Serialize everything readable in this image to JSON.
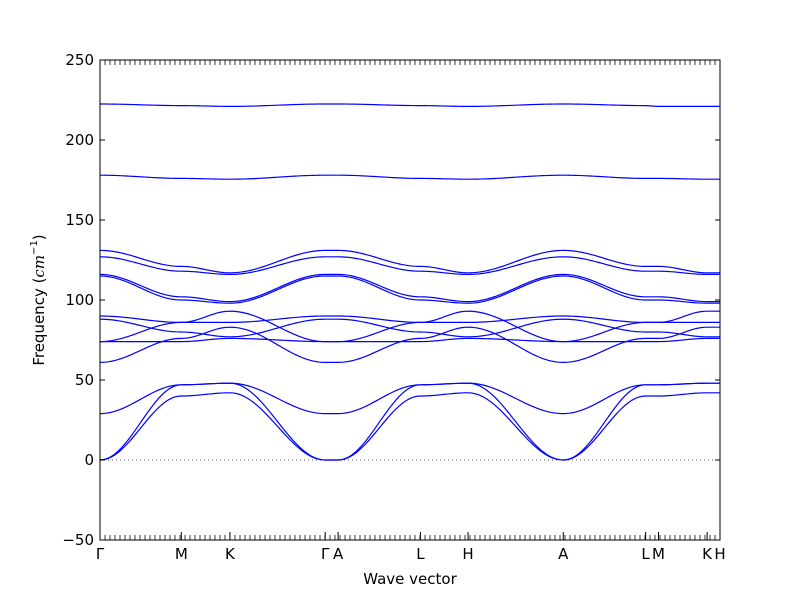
{
  "chart_data": {
    "type": "line",
    "xlabel": "Wave vector",
    "ylabel_text": "Frequency (",
    "ylabel_unit": "cm",
    "ylabel_exp": "−1",
    "ylabel_close": ")",
    "ylim": [
      -50,
      250
    ],
    "yticks": [
      -50,
      0,
      50,
      100,
      150,
      200,
      250
    ],
    "ytick_labels": [
      "−50",
      "0",
      "50",
      "100",
      "150",
      "200",
      "250"
    ],
    "xlim": [
      0,
      6.25
    ],
    "high_symmetry_points": [
      {
        "label": "Γ",
        "x": 0
      },
      {
        "label": "M",
        "x": 0.82
      },
      {
        "label": "K",
        "x": 1.31
      },
      {
        "label": "Γ",
        "x": 2.27
      },
      {
        "label": "A",
        "x": 2.4
      },
      {
        "label": "L",
        "x": 3.23
      },
      {
        "label": "H",
        "x": 3.71
      },
      {
        "label": "A",
        "x": 4.67
      },
      {
        "label": "L",
        "x": 5.5
      },
      {
        "label": "M",
        "x": 5.63
      },
      {
        "label": "K",
        "x": 6.12
      },
      {
        "label": "H",
        "x": 6.25
      }
    ],
    "zero_line": 0,
    "series_color": "#0000ff",
    "series": [
      {
        "x": [
          0,
          0.82,
          1.31,
          2.27,
          2.4,
          3.23,
          3.71,
          4.67,
          5.5,
          5.63,
          6.12,
          6.25
        ],
        "y": [
          0,
          40,
          42,
          0,
          0,
          40,
          42,
          0,
          40,
          40,
          42,
          42
        ]
      },
      {
        "x": [
          0,
          0.82,
          1.31,
          2.27,
          2.4,
          3.23,
          3.71,
          4.67,
          5.5,
          5.63,
          6.12,
          6.25
        ],
        "y": [
          0,
          47,
          48,
          0,
          0,
          47,
          48,
          0,
          47,
          47,
          48,
          48
        ]
      },
      {
        "x": [
          0,
          0.82,
          1.31,
          2.27,
          2.4,
          3.23,
          3.71,
          4.67,
          5.5,
          5.63,
          6.12,
          6.25
        ],
        "y": [
          29,
          47,
          48,
          29,
          29,
          47,
          48,
          29,
          47,
          47,
          48,
          48
        ]
      },
      {
        "x": [
          0,
          0.82,
          1.31,
          2.27,
          2.4,
          3.23,
          3.71,
          4.67,
          5.5,
          5.63,
          6.12,
          6.25
        ],
        "y": [
          61,
          76,
          83,
          61,
          61,
          76,
          83,
          61,
          76,
          76,
          83,
          83
        ]
      },
      {
        "x": [
          0,
          0.82,
          1.31,
          2.27,
          2.4,
          3.23,
          3.71,
          4.67,
          5.5,
          5.63,
          6.12,
          6.25
        ],
        "y": [
          74,
          86,
          93,
          74,
          74,
          86,
          93,
          74,
          86,
          86,
          93,
          93
        ]
      },
      {
        "x": [
          0,
          0.82,
          1.31,
          2.27,
          2.4,
          3.23,
          3.71,
          4.67,
          5.5,
          5.63,
          6.12,
          6.25
        ],
        "y": [
          74,
          74,
          76,
          74,
          74,
          74,
          76,
          74,
          74,
          74,
          76,
          76
        ]
      },
      {
        "x": [
          0,
          0.82,
          1.31,
          2.27,
          2.4,
          3.23,
          3.71,
          4.67,
          5.5,
          5.63,
          6.12,
          6.25
        ],
        "y": [
          88,
          80,
          77,
          88,
          88,
          80,
          77,
          88,
          80,
          80,
          77,
          77
        ]
      },
      {
        "x": [
          0,
          0.82,
          1.31,
          2.27,
          2.4,
          3.23,
          3.71,
          4.67,
          5.5,
          5.63,
          6.12,
          6.25
        ],
        "y": [
          90,
          86,
          86,
          90,
          90,
          86,
          86,
          90,
          86,
          86,
          86,
          86
        ]
      },
      {
        "x": [
          0,
          0.82,
          1.31,
          2.27,
          2.4,
          3.23,
          3.71,
          4.67,
          5.5,
          5.63,
          6.12,
          6.25
        ],
        "y": [
          115,
          100,
          98,
          115,
          115,
          100,
          98,
          115,
          100,
          100,
          98,
          98
        ]
      },
      {
        "x": [
          0,
          0.82,
          1.31,
          2.27,
          2.4,
          3.23,
          3.71,
          4.67,
          5.5,
          5.63,
          6.12,
          6.25
        ],
        "y": [
          116,
          102,
          99,
          116,
          116,
          102,
          99,
          116,
          102,
          102,
          99,
          99
        ]
      },
      {
        "x": [
          0,
          0.82,
          1.31,
          2.27,
          2.4,
          3.23,
          3.71,
          4.67,
          5.5,
          5.63,
          6.12,
          6.25
        ],
        "y": [
          127,
          118,
          116,
          127,
          127,
          118,
          116,
          127,
          118,
          118,
          116,
          116
        ]
      },
      {
        "x": [
          0,
          0.82,
          1.31,
          2.27,
          2.4,
          3.23,
          3.71,
          4.67,
          5.5,
          5.63,
          6.12,
          6.25
        ],
        "y": [
          131,
          121,
          117,
          131,
          131,
          121,
          117,
          131,
          121,
          121,
          117,
          117
        ]
      },
      {
        "x": [
          0,
          0.82,
          1.31,
          2.27,
          2.4,
          3.23,
          3.71,
          4.67,
          5.5,
          5.63,
          6.12,
          6.25
        ],
        "y": [
          178,
          176,
          175.5,
          178,
          178,
          176,
          175.5,
          178,
          176,
          176,
          175.5,
          175.5
        ]
      },
      {
        "x": [
          0,
          0.82,
          1.31,
          2.27,
          2.4,
          3.23,
          3.71,
          4.67,
          5.5,
          5.63,
          6.12,
          6.25
        ],
        "y": [
          222.5,
          221.5,
          221,
          222.5,
          222.5,
          221.5,
          221,
          222.5,
          221.5,
          221,
          221,
          221
        ]
      }
    ]
  }
}
